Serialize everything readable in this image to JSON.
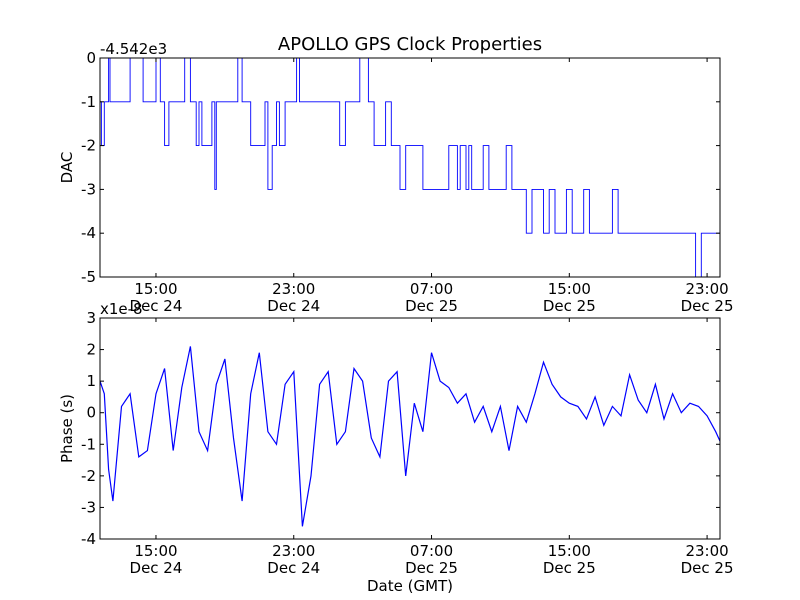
{
  "figure": {
    "title": "APOLLO GPS Clock Properties",
    "xlabel": "Date (GMT)"
  },
  "chart_data": [
    {
      "type": "line",
      "name": "dac",
      "title": "APOLLO GPS Clock Properties",
      "ylabel": "DAC",
      "xlabel": "",
      "y_offset_label": "-4.542e3",
      "y_offset": -4542,
      "ylim": [
        -5,
        0
      ],
      "yticks": [
        0,
        -1,
        -2,
        -3,
        -4,
        -5
      ],
      "ytick_labels": [
        "0",
        "-1",
        "-2",
        "-3",
        "-4",
        "-5"
      ],
      "xlim": [
        "2012-12-24 11:45",
        "2012-12-25 23:45"
      ],
      "xticks": [
        "2012-12-24 15:00",
        "2012-12-24 23:00",
        "2012-12-25 07:00",
        "2012-12-25 15:00",
        "2012-12-25 23:00"
      ],
      "xtick_labels": [
        [
          "15:00",
          "Dec 24"
        ],
        [
          "23:00",
          "Dec 24"
        ],
        [
          "07:00",
          "Dec 25"
        ],
        [
          "15:00",
          "Dec 25"
        ],
        [
          "23:00",
          "Dec 25"
        ]
      ],
      "grid": false,
      "color": "#0000ff",
      "series": [
        {
          "x": [
            "2012-12-24 11:45",
            "2012-12-24 11:50",
            "2012-12-24 12:00",
            "2012-12-24 12:10",
            "2012-12-24 12:15",
            "2012-12-24 12:20",
            "2012-12-24 12:30",
            "2012-12-24 13:15",
            "2012-12-24 13:30",
            "2012-12-24 14:15",
            "2012-12-24 14:30",
            "2012-12-24 14:45",
            "2012-12-24 15:00",
            "2012-12-24 15:15",
            "2012-12-24 15:30",
            "2012-12-24 15:45",
            "2012-12-24 16:10",
            "2012-12-24 16:40",
            "2012-12-24 17:00",
            "2012-12-24 17:10",
            "2012-12-24 17:20",
            "2012-12-24 17:30",
            "2012-12-24 17:40",
            "2012-12-24 18:15",
            "2012-12-24 18:25",
            "2012-12-24 18:30",
            "2012-12-24 19:00",
            "2012-12-24 19:10",
            "2012-12-24 19:30",
            "2012-12-24 19:40",
            "2012-12-24 19:45",
            "2012-12-24 20:00",
            "2012-12-24 20:30",
            "2012-12-24 20:50",
            "2012-12-24 21:10",
            "2012-12-24 21:20",
            "2012-12-24 21:30",
            "2012-12-24 21:45",
            "2012-12-24 22:00",
            "2012-12-24 22:10",
            "2012-12-24 22:30",
            "2012-12-24 22:50",
            "2012-12-24 23:10",
            "2012-12-24 23:20",
            "2012-12-24 23:40",
            "2012-12-24 23:50",
            "2012-12-25 00:30",
            "2012-12-25 00:40",
            "2012-12-25 01:00",
            "2012-12-25 01:30",
            "2012-12-25 01:40",
            "2012-12-25 02:00",
            "2012-12-25 02:20",
            "2012-12-25 02:40",
            "2012-12-25 02:50",
            "2012-12-25 03:20",
            "2012-12-25 03:40",
            "2012-12-25 04:00",
            "2012-12-25 04:20",
            "2012-12-25 04:40",
            "2012-12-25 05:00",
            "2012-12-25 05:10",
            "2012-12-25 05:30",
            "2012-12-25 06:00",
            "2012-12-25 06:30",
            "2012-12-25 06:50",
            "2012-12-25 07:20",
            "2012-12-25 07:40",
            "2012-12-25 08:00",
            "2012-12-25 08:30",
            "2012-12-25 08:40",
            "2012-12-25 09:00",
            "2012-12-25 09:10",
            "2012-12-25 09:20",
            "2012-12-25 09:40",
            "2012-12-25 10:00",
            "2012-12-25 10:20",
            "2012-12-25 10:40",
            "2012-12-25 11:00",
            "2012-12-25 11:20",
            "2012-12-25 11:40",
            "2012-12-25 12:00",
            "2012-12-25 12:30",
            "2012-12-25 12:50",
            "2012-12-25 13:10",
            "2012-12-25 13:30",
            "2012-12-25 13:50",
            "2012-12-25 14:10",
            "2012-12-25 14:30",
            "2012-12-25 14:50",
            "2012-12-25 15:10",
            "2012-12-25 15:30",
            "2012-12-25 15:50",
            "2012-12-25 16:10",
            "2012-12-25 16:30",
            "2012-12-25 16:50",
            "2012-12-25 17:10",
            "2012-12-25 17:30",
            "2012-12-25 17:50",
            "2012-12-25 18:10",
            "2012-12-25 18:30",
            "2012-12-25 19:00",
            "2012-12-25 20:00",
            "2012-12-25 21:00",
            "2012-12-25 22:00",
            "2012-12-25 22:20",
            "2012-12-25 22:40",
            "2012-12-25 23:00",
            "2012-12-25 23:45"
          ],
          "values": [
            -1,
            -2,
            -1,
            -1,
            0,
            -1,
            -1,
            -1,
            0,
            -1,
            -1,
            -1,
            0,
            -1,
            -2,
            -1,
            -1,
            0,
            -1,
            -1,
            -2,
            -1,
            -2,
            -1,
            -3,
            -1,
            -1,
            -1,
            -1,
            -1,
            0,
            -1,
            -2,
            -2,
            -2,
            -1,
            -3,
            -2,
            -1,
            -2,
            -1,
            -1,
            0,
            -1,
            -1,
            -1,
            -1,
            -1,
            -1,
            -1,
            -2,
            -1,
            -1,
            -1,
            0,
            -1,
            -2,
            -2,
            -1,
            -2,
            -2,
            -3,
            -2,
            -2,
            -3,
            -3,
            -3,
            -3,
            -2,
            -3,
            -2,
            -3,
            -2,
            -3,
            -3,
            -2,
            -3,
            -3,
            -3,
            -2,
            -3,
            -3,
            -4,
            -3,
            -3,
            -4,
            -3,
            -4,
            -4,
            -3,
            -4,
            -4,
            -3,
            -4,
            -4,
            -4,
            -4,
            -3,
            -4,
            -4,
            -4,
            -4,
            -4,
            -4,
            -4,
            -5,
            -4,
            -4,
            -4
          ]
        }
      ]
    },
    {
      "type": "line",
      "name": "phase",
      "ylabel": "Phase (s)",
      "xlabel": "Date (GMT)",
      "y_offset_label": "x1e-8",
      "y_scale": 1e-08,
      "ylim": [
        -4,
        3
      ],
      "yticks": [
        3,
        2,
        1,
        0,
        -1,
        -2,
        -3,
        -4
      ],
      "ytick_labels": [
        "3",
        "2",
        "1",
        "0",
        "-1",
        "-2",
        "-3",
        "-4"
      ],
      "xlim": [
        "2012-12-24 11:45",
        "2012-12-25 23:45"
      ],
      "xticks": [
        "2012-12-24 15:00",
        "2012-12-24 23:00",
        "2012-12-25 07:00",
        "2012-12-25 15:00",
        "2012-12-25 23:00"
      ],
      "xtick_labels": [
        [
          "15:00",
          "Dec 24"
        ],
        [
          "23:00",
          "Dec 24"
        ],
        [
          "07:00",
          "Dec 25"
        ],
        [
          "15:00",
          "Dec 25"
        ],
        [
          "23:00",
          "Dec 25"
        ]
      ],
      "grid": false,
      "color": "#0000ff",
      "series": [
        {
          "x": [
            "2012-12-24 11:45",
            "2012-12-24 12:00",
            "2012-12-24 12:15",
            "2012-12-24 12:30",
            "2012-12-24 13:00",
            "2012-12-24 13:30",
            "2012-12-24 14:00",
            "2012-12-24 14:30",
            "2012-12-24 15:00",
            "2012-12-24 15:30",
            "2012-12-24 16:00",
            "2012-12-24 16:30",
            "2012-12-24 17:00",
            "2012-12-24 17:30",
            "2012-12-24 18:00",
            "2012-12-24 18:30",
            "2012-12-24 19:00",
            "2012-12-24 19:30",
            "2012-12-24 20:00",
            "2012-12-24 20:30",
            "2012-12-24 21:00",
            "2012-12-24 21:30",
            "2012-12-24 22:00",
            "2012-12-24 22:30",
            "2012-12-24 23:00",
            "2012-12-24 23:30",
            "2012-12-25 00:00",
            "2012-12-25 00:30",
            "2012-12-25 01:00",
            "2012-12-25 01:30",
            "2012-12-25 02:00",
            "2012-12-25 02:30",
            "2012-12-25 03:00",
            "2012-12-25 03:30",
            "2012-12-25 04:00",
            "2012-12-25 04:30",
            "2012-12-25 05:00",
            "2012-12-25 05:30",
            "2012-12-25 06:00",
            "2012-12-25 06:30",
            "2012-12-25 07:00",
            "2012-12-25 07:30",
            "2012-12-25 08:00",
            "2012-12-25 08:30",
            "2012-12-25 09:00",
            "2012-12-25 09:30",
            "2012-12-25 10:00",
            "2012-12-25 10:30",
            "2012-12-25 11:00",
            "2012-12-25 11:30",
            "2012-12-25 12:00",
            "2012-12-25 12:30",
            "2012-12-25 13:00",
            "2012-12-25 13:30",
            "2012-12-25 14:00",
            "2012-12-25 14:30",
            "2012-12-25 15:00",
            "2012-12-25 15:30",
            "2012-12-25 16:00",
            "2012-12-25 16:30",
            "2012-12-25 17:00",
            "2012-12-25 17:30",
            "2012-12-25 18:00",
            "2012-12-25 18:30",
            "2012-12-25 19:00",
            "2012-12-25 19:30",
            "2012-12-25 20:00",
            "2012-12-25 20:30",
            "2012-12-25 21:00",
            "2012-12-25 21:30",
            "2012-12-25 22:00",
            "2012-12-25 22:30",
            "2012-12-25 23:00",
            "2012-12-25 23:30",
            "2012-12-25 23:45"
          ],
          "values": [
            1.0,
            0.6,
            -1.8,
            -2.8,
            0.2,
            0.6,
            -1.4,
            -1.2,
            0.6,
            1.4,
            -1.2,
            0.8,
            2.1,
            -0.6,
            -1.2,
            0.9,
            1.7,
            -0.8,
            -2.8,
            0.6,
            1.9,
            -0.6,
            -1.0,
            0.9,
            1.3,
            -3.6,
            -2.0,
            0.9,
            1.3,
            -1.0,
            -0.6,
            1.4,
            1.0,
            -0.8,
            -1.4,
            1.0,
            1.3,
            -2.0,
            0.3,
            -0.6,
            1.9,
            1.0,
            0.8,
            0.3,
            0.6,
            -0.3,
            0.2,
            -0.6,
            0.2,
            -1.2,
            0.2,
            -0.3,
            0.6,
            1.6,
            0.9,
            0.5,
            0.3,
            0.2,
            -0.2,
            0.5,
            -0.4,
            0.2,
            -0.1,
            1.2,
            0.4,
            0.0,
            0.9,
            -0.2,
            0.6,
            0.0,
            0.3,
            0.2,
            -0.1,
            -0.6,
            -0.9
          ]
        }
      ]
    }
  ]
}
